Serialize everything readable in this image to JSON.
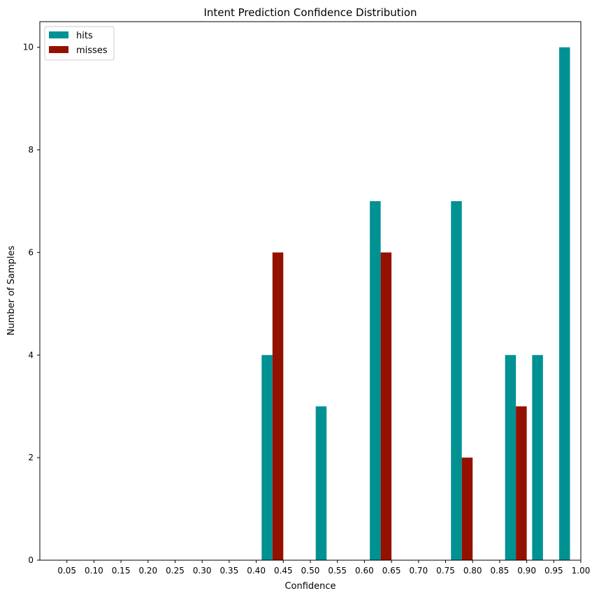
{
  "chart_data": {
    "type": "bar",
    "title": "Intent Prediction Confidence Distribution",
    "xlabel": "Confidence",
    "ylabel": "Number of Samples",
    "xlim": [
      0.0,
      1.0
    ],
    "ylim": [
      0,
      10.5
    ],
    "x_ticks": [
      "0.05",
      "0.10",
      "0.15",
      "0.20",
      "0.25",
      "0.30",
      "0.35",
      "0.40",
      "0.45",
      "0.50",
      "0.55",
      "0.60",
      "0.65",
      "0.70",
      "0.75",
      "0.80",
      "0.85",
      "0.90",
      "0.95",
      "1.00"
    ],
    "y_ticks": [
      "0",
      "2",
      "4",
      "6",
      "8",
      "10"
    ],
    "grid": false,
    "legend_position": "top-left",
    "bin_width": 0.02,
    "series": [
      {
        "name": "hits",
        "color": "#009193",
        "points": [
          {
            "x": 0.42,
            "y": 4
          },
          {
            "x": 0.52,
            "y": 3
          },
          {
            "x": 0.62,
            "y": 7
          },
          {
            "x": 0.77,
            "y": 7
          },
          {
            "x": 0.87,
            "y": 4
          },
          {
            "x": 0.92,
            "y": 4
          },
          {
            "x": 0.97,
            "y": 10
          }
        ]
      },
      {
        "name": "misses",
        "color": "#941100",
        "points": [
          {
            "x": 0.44,
            "y": 6
          },
          {
            "x": 0.64,
            "y": 6
          },
          {
            "x": 0.79,
            "y": 2
          },
          {
            "x": 0.89,
            "y": 3
          }
        ]
      }
    ]
  }
}
